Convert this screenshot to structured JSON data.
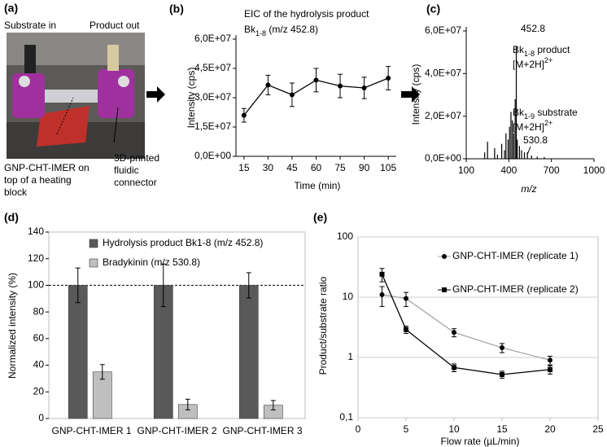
{
  "photo_panel": {
    "label": "(a)",
    "inlet": "Substrate in",
    "outlet": "Product out",
    "imer_label": [
      "GNP-CHT-IMER on",
      "top of a heating",
      "block"
    ],
    "connector_label": [
      "3D-printed",
      "fluidic",
      "connector"
    ]
  },
  "chart_data": [
    {
      "panel_label": "(b)",
      "type": "line",
      "title": "EIC of the hydrolysis product",
      "subtitle": {
        "text": "Bk",
        "sub": "1-8",
        "rest": " (m/z 452.8)"
      },
      "x": [
        15,
        30,
        45,
        60,
        75,
        90,
        105
      ],
      "values": [
        21000000,
        36500000,
        31500000,
        39000000,
        36000000,
        35000000,
        40000000
      ],
      "errors": [
        3500000,
        5000000,
        6000000,
        6000000,
        6000000,
        5500000,
        6000000
      ],
      "color": "#000000",
      "xlim": [
        10,
        110
      ],
      "xticks": [
        15,
        30,
        45,
        60,
        75,
        90,
        105
      ],
      "ylim": [
        0,
        60000000
      ],
      "yticks": [
        {
          "value": 0,
          "label": "0,0E+00"
        },
        {
          "value": 15000000,
          "label": "1,5E+07"
        },
        {
          "value": 30000000,
          "label": "3,0E+07"
        },
        {
          "value": 45000000,
          "label": "4,5E+07"
        },
        {
          "value": 60000000,
          "label": "6,0E+07"
        }
      ],
      "x_label": "Time (min)",
      "y_label": "Intensity (cps)",
      "grid": false
    },
    {
      "panel_label": "(c)",
      "type": "stem",
      "x": [
        230,
        250,
        300,
        320,
        350,
        370,
        380,
        395,
        405,
        415,
        425,
        435,
        445,
        452.8,
        460,
        475,
        490,
        510,
        530.8,
        560,
        600,
        650
      ],
      "values": [
        3000000,
        8000000,
        5000000,
        2000000,
        7000000,
        4000000,
        12000000,
        9000000,
        15000000,
        22000000,
        18000000,
        12000000,
        28000000,
        53000000,
        9000000,
        6000000,
        4000000,
        3000000,
        3000000,
        1500000,
        1000000,
        800000
      ],
      "color": "#000000",
      "xlim": [
        100,
        1000
      ],
      "xticks": [
        100,
        400,
        700,
        1000
      ],
      "ylim": [
        0,
        60000000
      ],
      "yticks": [
        {
          "value": 0,
          "label": "0,0E+00"
        },
        {
          "value": 20000000,
          "label": "2,0E+07"
        },
        {
          "value": 40000000,
          "label": "4,0E+07"
        },
        {
          "value": 60000000,
          "label": "6,0E+07"
        }
      ],
      "x_label": "m/z",
      "y_label": "Intensity (cps)",
      "grid": false,
      "annotations": [
        {
          "text": "452.8"
        },
        {
          "text": "Bk",
          "sub": "1-8",
          "rest": " product"
        },
        {
          "text": "[M+2H]",
          "sup": "2+"
        },
        {
          "text": "Bk",
          "sub": "1-9",
          "rest": " substrate"
        },
        {
          "text": "[M+2H]",
          "sup": "2+"
        },
        {
          "text": "530.8"
        }
      ]
    },
    {
      "panel_label": "(d)",
      "type": "bar",
      "categories": [
        "GNP-CHT-IMER 1",
        "GNP-CHT-IMER 2",
        "GNP-CHT-IMER 3"
      ],
      "series": [
        {
          "name": "Hydrolysis product Bk1-8 (m/z 452.8)",
          "color": "#595959",
          "values": [
            100,
            100,
            100
          ],
          "errors": [
            13,
            16,
            9.5
          ]
        },
        {
          "name": "Bradykinin (m/z 530.8)",
          "color": "#bfbfbf",
          "values": [
            35,
            10.5,
            10
          ],
          "errors": [
            5.5,
            4,
            3.5
          ]
        }
      ],
      "reference_line": 100,
      "ylim": [
        0,
        140
      ],
      "yticks": [
        0,
        20,
        40,
        60,
        80,
        100,
        120,
        140
      ],
      "y_label": "Normalized intensity (%)",
      "grid": false
    },
    {
      "panel_label": "(e)",
      "type": "line",
      "log_y": true,
      "x": [
        2.5,
        5,
        10,
        15,
        20
      ],
      "series": [
        {
          "name": "GNP-CHT-IMER (replicate 1)",
          "color": "#a6a6a6",
          "marker": "circle",
          "values": [
            11,
            9.5,
            2.6,
            1.45,
            0.9
          ],
          "errors": [
            4,
            2.5,
            0.4,
            0.25,
            0.15
          ]
        },
        {
          "name": "GNP-CHT-IMER (replicate 2)",
          "color": "#000000",
          "marker": "square",
          "values": [
            24,
            2.9,
            0.68,
            0.52,
            0.63
          ],
          "errors": [
            6,
            0.4,
            0.1,
            0.07,
            0.1
          ]
        }
      ],
      "xlim": [
        0,
        25
      ],
      "xticks": [
        0,
        5,
        10,
        15,
        20,
        25
      ],
      "ylim": [
        0.1,
        100
      ],
      "yticks": [
        {
          "value": 0.1,
          "label": "0,1"
        },
        1,
        10,
        100
      ],
      "x_label": "Flow rate (µL/min)",
      "y_label": "Product/substrate ratio",
      "grid": true
    }
  ]
}
